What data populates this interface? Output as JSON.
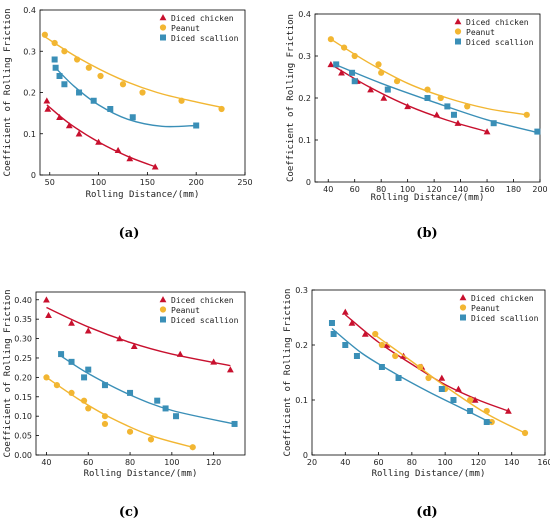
{
  "colors": {
    "chicken": "#c8102e",
    "peanut": "#f2b632",
    "scallion": "#3a8fb7"
  },
  "chart_data": [
    {
      "type": "scatter",
      "panel_label": "(a)",
      "xlabel": "Rolling Distance/(mm)",
      "ylabel": "Coefficient of Rolling Friction",
      "xlim": [
        40,
        250
      ],
      "ylim": [
        0,
        0.4
      ],
      "xticks": [
        "50",
        "100",
        "150",
        "200",
        "250"
      ],
      "yticks": [
        "0",
        "0.1",
        "0.2",
        "0.3",
        "0.4"
      ],
      "legend_position": "top-right",
      "series": [
        {
          "name": "Diced chicken",
          "marker": "triangle",
          "color_key": "chicken",
          "points": [
            [
              47,
              0.18
            ],
            [
              48,
              0.16
            ],
            [
              60,
              0.14
            ],
            [
              70,
              0.12
            ],
            [
              80,
              0.1
            ],
            [
              100,
              0.08
            ],
            [
              120,
              0.06
            ],
            [
              132,
              0.04
            ],
            [
              158,
              0.02
            ]
          ],
          "fit": [
            [
              47,
              0.17
            ],
            [
              70,
              0.125
            ],
            [
              100,
              0.08
            ],
            [
              130,
              0.045
            ],
            [
              158,
              0.02
            ]
          ]
        },
        {
          "name": "Peanut",
          "marker": "circle",
          "color_key": "peanut",
          "points": [
            [
              45,
              0.34
            ],
            [
              55,
              0.32
            ],
            [
              65,
              0.3
            ],
            [
              78,
              0.28
            ],
            [
              90,
              0.26
            ],
            [
              102,
              0.24
            ],
            [
              125,
              0.22
            ],
            [
              145,
              0.2
            ],
            [
              185,
              0.18
            ],
            [
              226,
              0.16
            ]
          ],
          "fit": [
            [
              45,
              0.335
            ],
            [
              80,
              0.283
            ],
            [
              120,
              0.235
            ],
            [
              160,
              0.2
            ],
            [
              200,
              0.177
            ],
            [
              228,
              0.163
            ]
          ]
        },
        {
          "name": "Diced scallion",
          "marker": "square",
          "color_key": "scallion",
          "points": [
            [
              55,
              0.28
            ],
            [
              56,
              0.26
            ],
            [
              60,
              0.24
            ],
            [
              65,
              0.22
            ],
            [
              80,
              0.2
            ],
            [
              95,
              0.18
            ],
            [
              112,
              0.16
            ],
            [
              135,
              0.14
            ],
            [
              200,
              0.12
            ]
          ],
          "fit": [
            [
              55,
              0.262
            ],
            [
              75,
              0.215
            ],
            [
              100,
              0.17
            ],
            [
              130,
              0.135
            ],
            [
              165,
              0.118
            ],
            [
              200,
              0.12
            ]
          ]
        }
      ]
    },
    {
      "type": "scatter",
      "panel_label": "(b)",
      "xlabel": "Rolling Distance/(mm)",
      "ylabel": "Coefficient of Rolling Friction",
      "xlim": [
        30,
        200
      ],
      "ylim": [
        0,
        0.4
      ],
      "xticks": [
        "40",
        "60",
        "80",
        "100",
        "120",
        "140",
        "160",
        "180",
        "200"
      ],
      "yticks": [
        "0",
        "0.1",
        "0.2",
        "0.3",
        "0.4"
      ],
      "legend_position": "top-right",
      "series": [
        {
          "name": "Diced chicken",
          "marker": "triangle",
          "color_key": "chicken",
          "points": [
            [
              42,
              0.28
            ],
            [
              50,
              0.26
            ],
            [
              62,
              0.24
            ],
            [
              72,
              0.22
            ],
            [
              82,
              0.2
            ],
            [
              100,
              0.18
            ],
            [
              122,
              0.16
            ],
            [
              138,
              0.14
            ],
            [
              160,
              0.12
            ]
          ],
          "fit": [
            [
              42,
              0.28
            ],
            [
              70,
              0.228
            ],
            [
              100,
              0.182
            ],
            [
              130,
              0.147
            ],
            [
              160,
              0.12
            ]
          ]
        },
        {
          "name": "Peanut",
          "marker": "circle",
          "color_key": "peanut",
          "points": [
            [
              42,
              0.34
            ],
            [
              52,
              0.32
            ],
            [
              60,
              0.3
            ],
            [
              78,
              0.28
            ],
            [
              80,
              0.26
            ],
            [
              92,
              0.24
            ],
            [
              115,
              0.22
            ],
            [
              125,
              0.2
            ],
            [
              145,
              0.18
            ],
            [
              190,
              0.16
            ]
          ],
          "fit": [
            [
              42,
              0.34
            ],
            [
              70,
              0.285
            ],
            [
              100,
              0.235
            ],
            [
              130,
              0.2
            ],
            [
              160,
              0.175
            ],
            [
              190,
              0.16
            ]
          ]
        },
        {
          "name": "Diced scallion",
          "marker": "square",
          "color_key": "scallion",
          "points": [
            [
              46,
              0.28
            ],
            [
              58,
              0.26
            ],
            [
              60,
              0.24
            ],
            [
              85,
              0.22
            ],
            [
              115,
              0.2
            ],
            [
              130,
              0.18
            ],
            [
              135,
              0.16
            ],
            [
              165,
              0.14
            ],
            [
              198,
              0.12
            ]
          ],
          "fit": [
            [
              45,
              0.28
            ],
            [
              80,
              0.235
            ],
            [
              120,
              0.19
            ],
            [
              160,
              0.148
            ],
            [
              198,
              0.118
            ]
          ]
        }
      ]
    },
    {
      "type": "scatter",
      "panel_label": "(c)",
      "xlabel": "Rolling Distance/(mm)",
      "ylabel": "Coefficient of Rolling Friction",
      "xlim": [
        35,
        135
      ],
      "ylim": [
        0,
        0.42
      ],
      "xticks": [
        "40",
        "60",
        "80",
        "100",
        "120"
      ],
      "yticks": [
        "0.00",
        "0.05",
        "0.10",
        "0.15",
        "0.20",
        "0.25",
        "0.30",
        "0.35",
        "0.40"
      ],
      "legend_position": "top-right",
      "series": [
        {
          "name": "Diced chicken",
          "marker": "triangle",
          "color_key": "chicken",
          "points": [
            [
              40,
              0.4
            ],
            [
              41,
              0.36
            ],
            [
              52,
              0.34
            ],
            [
              60,
              0.32
            ],
            [
              75,
              0.3
            ],
            [
              82,
              0.28
            ],
            [
              104,
              0.26
            ],
            [
              120,
              0.24
            ],
            [
              128,
              0.22
            ]
          ],
          "fit": [
            [
              40,
              0.38
            ],
            [
              60,
              0.33
            ],
            [
              80,
              0.29
            ],
            [
              100,
              0.26
            ],
            [
              128,
              0.23
            ]
          ]
        },
        {
          "name": "Peanut",
          "marker": "circle",
          "color_key": "peanut",
          "points": [
            [
              40,
              0.2
            ],
            [
              45,
              0.18
            ],
            [
              52,
              0.16
            ],
            [
              58,
              0.14
            ],
            [
              60,
              0.12
            ],
            [
              68,
              0.1
            ],
            [
              68,
              0.08
            ],
            [
              80,
              0.06
            ],
            [
              90,
              0.04
            ],
            [
              110,
              0.02
            ]
          ],
          "fit": [
            [
              40,
              0.2
            ],
            [
              55,
              0.145
            ],
            [
              70,
              0.098
            ],
            [
              90,
              0.05
            ],
            [
              110,
              0.02
            ]
          ]
        },
        {
          "name": "Diced scallion",
          "marker": "square",
          "color_key": "scallion",
          "points": [
            [
              47,
              0.26
            ],
            [
              52,
              0.24
            ],
            [
              58,
              0.2
            ],
            [
              60,
              0.22
            ],
            [
              68,
              0.18
            ],
            [
              80,
              0.16
            ],
            [
              93,
              0.14
            ],
            [
              97,
              0.12
            ],
            [
              102,
              0.1
            ],
            [
              130,
              0.08
            ]
          ],
          "fit": [
            [
              47,
              0.255
            ],
            [
              60,
              0.21
            ],
            [
              80,
              0.155
            ],
            [
              100,
              0.115
            ],
            [
              130,
              0.08
            ]
          ]
        }
      ]
    },
    {
      "type": "scatter",
      "panel_label": "(d)",
      "xlabel": "Rolling Distance/(mm)",
      "ylabel": "Coefficient of Rolling Friction",
      "xlim": [
        20,
        160
      ],
      "ylim": [
        0,
        0.3
      ],
      "xticks": [
        "20",
        "40",
        "60",
        "80",
        "100",
        "120",
        "140",
        "160"
      ],
      "yticks": [
        "0",
        "0.1",
        "0.2",
        "0.3"
      ],
      "legend_position": "top-right",
      "series": [
        {
          "name": "Diced chicken",
          "marker": "triangle",
          "color_key": "chicken",
          "points": [
            [
              40,
              0.26
            ],
            [
              44,
              0.24
            ],
            [
              52,
              0.22
            ],
            [
              65,
              0.2
            ],
            [
              75,
              0.18
            ],
            [
              86,
              0.16
            ],
            [
              98,
              0.14
            ],
            [
              108,
              0.12
            ],
            [
              118,
              0.1
            ],
            [
              138,
              0.08
            ]
          ],
          "fit": [
            [
              40,
              0.255
            ],
            [
              60,
              0.205
            ],
            [
              80,
              0.165
            ],
            [
              100,
              0.128
            ],
            [
              120,
              0.1
            ],
            [
              138,
              0.08
            ]
          ]
        },
        {
          "name": "Peanut",
          "marker": "circle",
          "color_key": "peanut",
          "points": [
            [
              58,
              0.22
            ],
            [
              62,
              0.2
            ],
            [
              70,
              0.18
            ],
            [
              85,
              0.16
            ],
            [
              90,
              0.14
            ],
            [
              100,
              0.12
            ],
            [
              115,
              0.1
            ],
            [
              125,
              0.08
            ],
            [
              128,
              0.06
            ],
            [
              148,
              0.04
            ]
          ],
          "fit": [
            [
              57,
              0.22
            ],
            [
              80,
              0.17
            ],
            [
              100,
              0.125
            ],
            [
              125,
              0.075
            ],
            [
              148,
              0.04
            ]
          ]
        },
        {
          "name": "Diced scallion",
          "marker": "square",
          "color_key": "scallion",
          "points": [
            [
              32,
              0.24
            ],
            [
              33,
              0.22
            ],
            [
              40,
              0.2
            ],
            [
              47,
              0.18
            ],
            [
              62,
              0.16
            ],
            [
              72,
              0.14
            ],
            [
              98,
              0.12
            ],
            [
              105,
              0.1
            ],
            [
              115,
              0.08
            ],
            [
              125,
              0.06
            ]
          ],
          "fit": [
            [
              32,
              0.23
            ],
            [
              50,
              0.185
            ],
            [
              70,
              0.148
            ],
            [
              90,
              0.115
            ],
            [
              110,
              0.085
            ],
            [
              128,
              0.058
            ]
          ]
        }
      ]
    }
  ]
}
